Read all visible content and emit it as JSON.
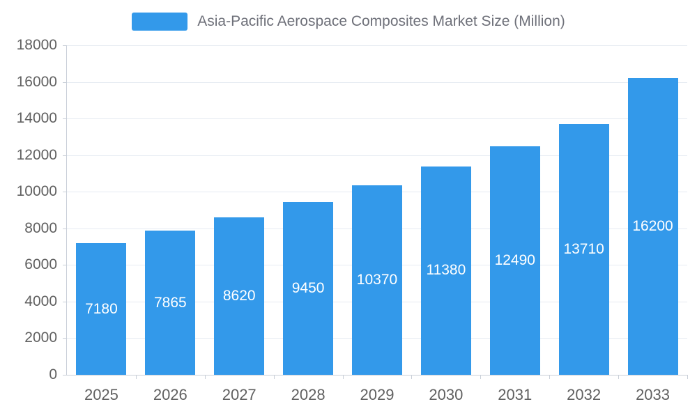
{
  "legend": {
    "title": "Asia-Pacific Aerospace Composites Market Size (Million)"
  },
  "chart_data": {
    "type": "bar",
    "title": "Asia-Pacific Aerospace Composites Market Size (Million)",
    "categories": [
      "2025",
      "2026",
      "2027",
      "2028",
      "2029",
      "2030",
      "2031",
      "2032",
      "2033"
    ],
    "values": [
      7180,
      7865,
      8620,
      9450,
      10370,
      11380,
      12490,
      13710,
      16200
    ],
    "xlabel": "",
    "ylabel": "",
    "ylim": [
      0,
      18000
    ],
    "ytick_step": 2000,
    "grid": true,
    "legend_position": "top",
    "bar_color": "#3399EA",
    "value_label_color": "#FFFFFF",
    "axis_text_color": "#616161",
    "grid_color": "#E6EBF2"
  }
}
